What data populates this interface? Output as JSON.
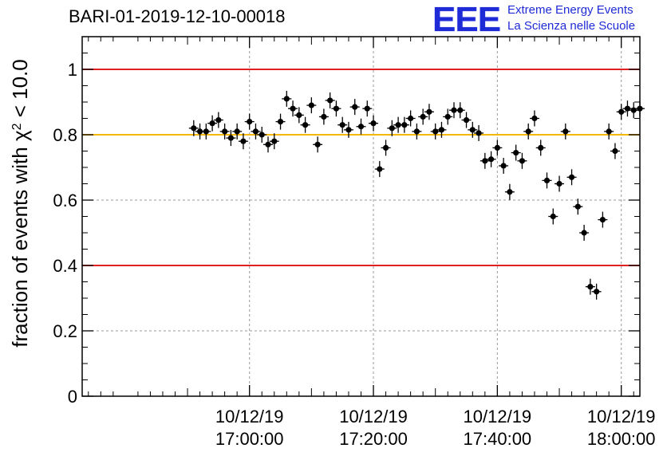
{
  "header": {
    "title": "BARI-01-2019-12-10-00018",
    "logo": "EEE",
    "logo_line1": "Extreme Energy Events",
    "logo_line2": "La Scienza nelle Scuole"
  },
  "colors": {
    "threshold_low_high": "#e02020",
    "threshold_mid": "#f5b800",
    "marker": "#000000",
    "grid": "#9a9a9a",
    "logo": "#1f2bd6"
  },
  "chart_data": {
    "type": "scatter",
    "title": "BARI-01-2019-12-10-00018",
    "ylabel_prefix": "fraction of events with χ",
    "ylabel_sup": "2",
    "ylabel_suffix": " < 10.0",
    "xlabel": "",
    "xlim_minutes": [
      -27,
      63
    ],
    "ylim": [
      0,
      1.1
    ],
    "y_ticks": [
      0,
      0.2,
      0.4,
      0.6,
      0.8,
      1
    ],
    "y_tick_labels": [
      "0",
      "0.2",
      "0.4",
      "0.6",
      "0.8",
      "1"
    ],
    "x_ticks_minutes": [
      0,
      20,
      40,
      60
    ],
    "x_tick_labels": [
      {
        "date": "10/12/19",
        "time": "17:00:00"
      },
      {
        "date": "10/12/19",
        "time": "17:20:00"
      },
      {
        "date": "10/12/19",
        "time": "17:40:00"
      },
      {
        "date": "10/12/19",
        "time": "18:00:00"
      }
    ],
    "grid": true,
    "reference_lines": [
      {
        "y": 1.0,
        "color": "#e02020"
      },
      {
        "y": 0.8,
        "color": "#f5b800"
      },
      {
        "y": 0.4,
        "color": "#e02020"
      }
    ],
    "series": [
      {
        "name": "fraction",
        "x": [
          -9.0,
          -8.0,
          -7.0,
          -6.0,
          -5.0,
          -4.0,
          -3.0,
          -2.0,
          -1.0,
          0.0,
          1.0,
          2.0,
          3.0,
          4.0,
          5.0,
          6.0,
          7.0,
          8.0,
          9.0,
          10.0,
          11.0,
          12.0,
          13.0,
          14.0,
          15.0,
          16.0,
          17.0,
          18.0,
          19.0,
          20.0,
          21.0,
          22.0,
          23.0,
          24.0,
          25.0,
          26.0,
          27.0,
          28.0,
          29.0,
          30.0,
          31.0,
          32.0,
          33.0,
          34.0,
          35.0,
          36.0,
          37.0,
          38.0,
          39.0,
          40.0,
          41.0,
          42.0,
          43.0,
          44.0,
          45.0,
          46.0,
          47.0,
          48.0,
          49.0,
          50.0,
          51.0,
          52.0,
          53.0,
          54.0,
          55.0,
          56.0,
          57.0,
          58.0,
          59.0,
          60.0,
          61.0,
          62.0,
          63.0
        ],
        "y": [
          0.82,
          0.81,
          0.81,
          0.835,
          0.845,
          0.81,
          0.79,
          0.81,
          0.78,
          0.84,
          0.81,
          0.8,
          0.77,
          0.78,
          0.84,
          0.91,
          0.88,
          0.86,
          0.83,
          0.89,
          0.77,
          0.855,
          0.905,
          0.88,
          0.83,
          0.815,
          0.885,
          0.825,
          0.88,
          0.835,
          0.695,
          0.76,
          0.82,
          0.83,
          0.83,
          0.85,
          0.81,
          0.855,
          0.87,
          0.81,
          0.815,
          0.855,
          0.875,
          0.875,
          0.845,
          0.815,
          0.805,
          0.72,
          0.725,
          0.76,
          0.705,
          0.625,
          0.745,
          0.72,
          0.81,
          0.85,
          0.76,
          0.66,
          0.55,
          0.65,
          0.81,
          0.67,
          0.58,
          0.5,
          0.335,
          0.32,
          0.54,
          0.81,
          0.75,
          0.87,
          0.88,
          0.875,
          0.88
        ]
      }
    ]
  }
}
